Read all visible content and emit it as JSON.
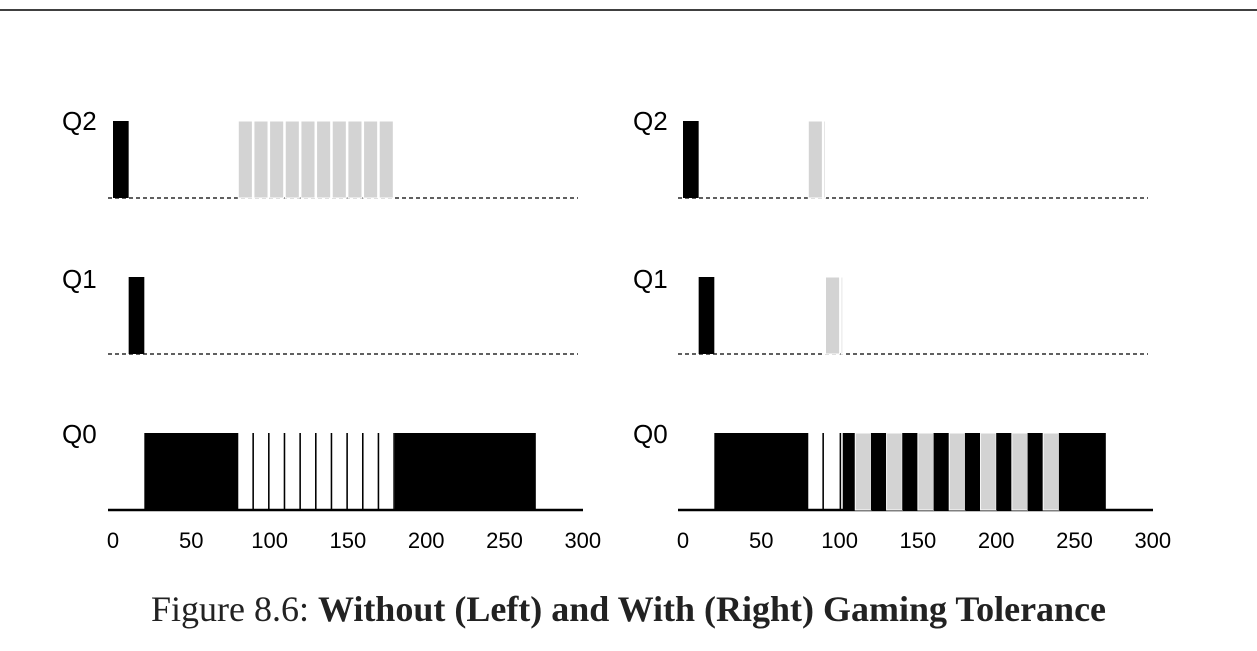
{
  "chart_data": [
    {
      "type": "bar",
      "name": "Without Gaming Tolerance",
      "side": "left",
      "queues": [
        "Q2",
        "Q1",
        "Q0"
      ],
      "xlim": [
        0,
        300
      ],
      "xticks": [
        0,
        50,
        100,
        150,
        200,
        250,
        300
      ],
      "segments": [
        {
          "job": "A",
          "queue": "Q2",
          "start": 0,
          "end": 10
        },
        {
          "job": "A",
          "queue": "Q1",
          "start": 10,
          "end": 20
        },
        {
          "job": "A",
          "queue": "Q0",
          "start": 20,
          "end": 80
        },
        {
          "job": "B",
          "queue": "Q2",
          "start": 80,
          "end": 89
        },
        {
          "job": "A",
          "queue": "Q0",
          "start": 89,
          "end": 90
        },
        {
          "job": "B",
          "queue": "Q2",
          "start": 90,
          "end": 99
        },
        {
          "job": "A",
          "queue": "Q0",
          "start": 99,
          "end": 100
        },
        {
          "job": "B",
          "queue": "Q2",
          "start": 100,
          "end": 109
        },
        {
          "job": "A",
          "queue": "Q0",
          "start": 109,
          "end": 110
        },
        {
          "job": "B",
          "queue": "Q2",
          "start": 110,
          "end": 119
        },
        {
          "job": "A",
          "queue": "Q0",
          "start": 119,
          "end": 120
        },
        {
          "job": "B",
          "queue": "Q2",
          "start": 120,
          "end": 129
        },
        {
          "job": "A",
          "queue": "Q0",
          "start": 129,
          "end": 130
        },
        {
          "job": "B",
          "queue": "Q2",
          "start": 130,
          "end": 139
        },
        {
          "job": "A",
          "queue": "Q0",
          "start": 139,
          "end": 140
        },
        {
          "job": "B",
          "queue": "Q2",
          "start": 140,
          "end": 149
        },
        {
          "job": "A",
          "queue": "Q0",
          "start": 149,
          "end": 150
        },
        {
          "job": "B",
          "queue": "Q2",
          "start": 150,
          "end": 159
        },
        {
          "job": "A",
          "queue": "Q0",
          "start": 159,
          "end": 160
        },
        {
          "job": "B",
          "queue": "Q2",
          "start": 160,
          "end": 169
        },
        {
          "job": "A",
          "queue": "Q0",
          "start": 169,
          "end": 170
        },
        {
          "job": "B",
          "queue": "Q2",
          "start": 170,
          "end": 179
        },
        {
          "job": "A",
          "queue": "Q0",
          "start": 179,
          "end": 180
        },
        {
          "job": "A",
          "queue": "Q0",
          "start": 180,
          "end": 270
        }
      ]
    },
    {
      "type": "bar",
      "name": "With Gaming Tolerance",
      "side": "right",
      "queues": [
        "Q2",
        "Q1",
        "Q0"
      ],
      "xlim": [
        0,
        300
      ],
      "xticks": [
        0,
        50,
        100,
        150,
        200,
        250,
        300
      ],
      "segments": [
        {
          "job": "A",
          "queue": "Q2",
          "start": 0,
          "end": 10
        },
        {
          "job": "A",
          "queue": "Q1",
          "start": 10,
          "end": 20
        },
        {
          "job": "A",
          "queue": "Q0",
          "start": 20,
          "end": 80
        },
        {
          "job": "B",
          "queue": "Q2",
          "start": 80,
          "end": 89
        },
        {
          "job": "A",
          "queue": "Q0",
          "start": 89,
          "end": 90
        },
        {
          "job": "B",
          "queue": "Q2",
          "start": 90,
          "end": 91
        },
        {
          "job": "B",
          "queue": "Q1",
          "start": 91,
          "end": 100
        },
        {
          "job": "A",
          "queue": "Q0",
          "start": 100,
          "end": 101
        },
        {
          "job": "B",
          "queue": "Q1",
          "start": 101,
          "end": 102
        },
        {
          "job": "A",
          "queue": "Q0",
          "start": 102,
          "end": 110
        },
        {
          "job": "B",
          "queue": "Q0",
          "start": 110,
          "end": 120
        },
        {
          "job": "A",
          "queue": "Q0",
          "start": 120,
          "end": 130
        },
        {
          "job": "B",
          "queue": "Q0",
          "start": 130,
          "end": 140
        },
        {
          "job": "A",
          "queue": "Q0",
          "start": 140,
          "end": 150
        },
        {
          "job": "B",
          "queue": "Q0",
          "start": 150,
          "end": 160
        },
        {
          "job": "A",
          "queue": "Q0",
          "start": 160,
          "end": 170
        },
        {
          "job": "B",
          "queue": "Q0",
          "start": 170,
          "end": 180
        },
        {
          "job": "A",
          "queue": "Q0",
          "start": 180,
          "end": 190
        },
        {
          "job": "B",
          "queue": "Q0",
          "start": 190,
          "end": 200
        },
        {
          "job": "A",
          "queue": "Q0",
          "start": 200,
          "end": 210
        },
        {
          "job": "B",
          "queue": "Q0",
          "start": 210,
          "end": 220
        },
        {
          "job": "A",
          "queue": "Q0",
          "start": 220,
          "end": 230
        },
        {
          "job": "B",
          "queue": "Q0",
          "start": 230,
          "end": 240
        },
        {
          "job": "A",
          "queue": "Q0",
          "start": 240,
          "end": 270
        }
      ]
    }
  ],
  "colors": {
    "job_a": "#000000",
    "job_b": "#d3d3d3",
    "axis": "#000000",
    "baseline_dashed": "#000000"
  },
  "caption": {
    "prefix": "Figure 8.6: ",
    "title": "Without (Left) and With (Right) Gaming Tolerance"
  }
}
